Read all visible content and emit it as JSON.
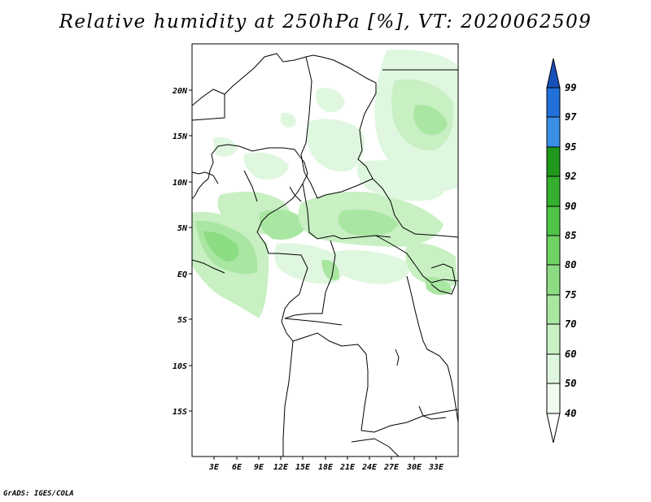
{
  "title": "Relative humidity at 250hPa [%], VT: 2020062509",
  "credit": "GrADS: IGES/COLA",
  "map": {
    "variable": "Relative humidity",
    "level": "250hPa",
    "units": "%",
    "valid_time": "2020062509",
    "lon_range": [
      0,
      36
    ],
    "lat_range": [
      -20,
      25
    ],
    "lon_ticks": [
      "3E",
      "6E",
      "9E",
      "12E",
      "15E",
      "18E",
      "21E",
      "24E",
      "27E",
      "30E",
      "33E"
    ],
    "lat_ticks": [
      "20N",
      "15N",
      "10N",
      "5N",
      "EQ",
      "5S",
      "10S",
      "15S"
    ]
  },
  "colorbar": {
    "levels": [
      "40",
      "50",
      "60",
      "70",
      "75",
      "80",
      "85",
      "90",
      "92",
      "95",
      "97",
      "99"
    ],
    "colors": [
      "#f0fcf0",
      "#e0f7df",
      "#c8f0c3",
      "#a9e6a2",
      "#8cdc83",
      "#6ed265",
      "#4fc447",
      "#35b02e",
      "#1f981c",
      "#3a8ee6",
      "#2070d8",
      "#1750b8"
    ]
  }
}
